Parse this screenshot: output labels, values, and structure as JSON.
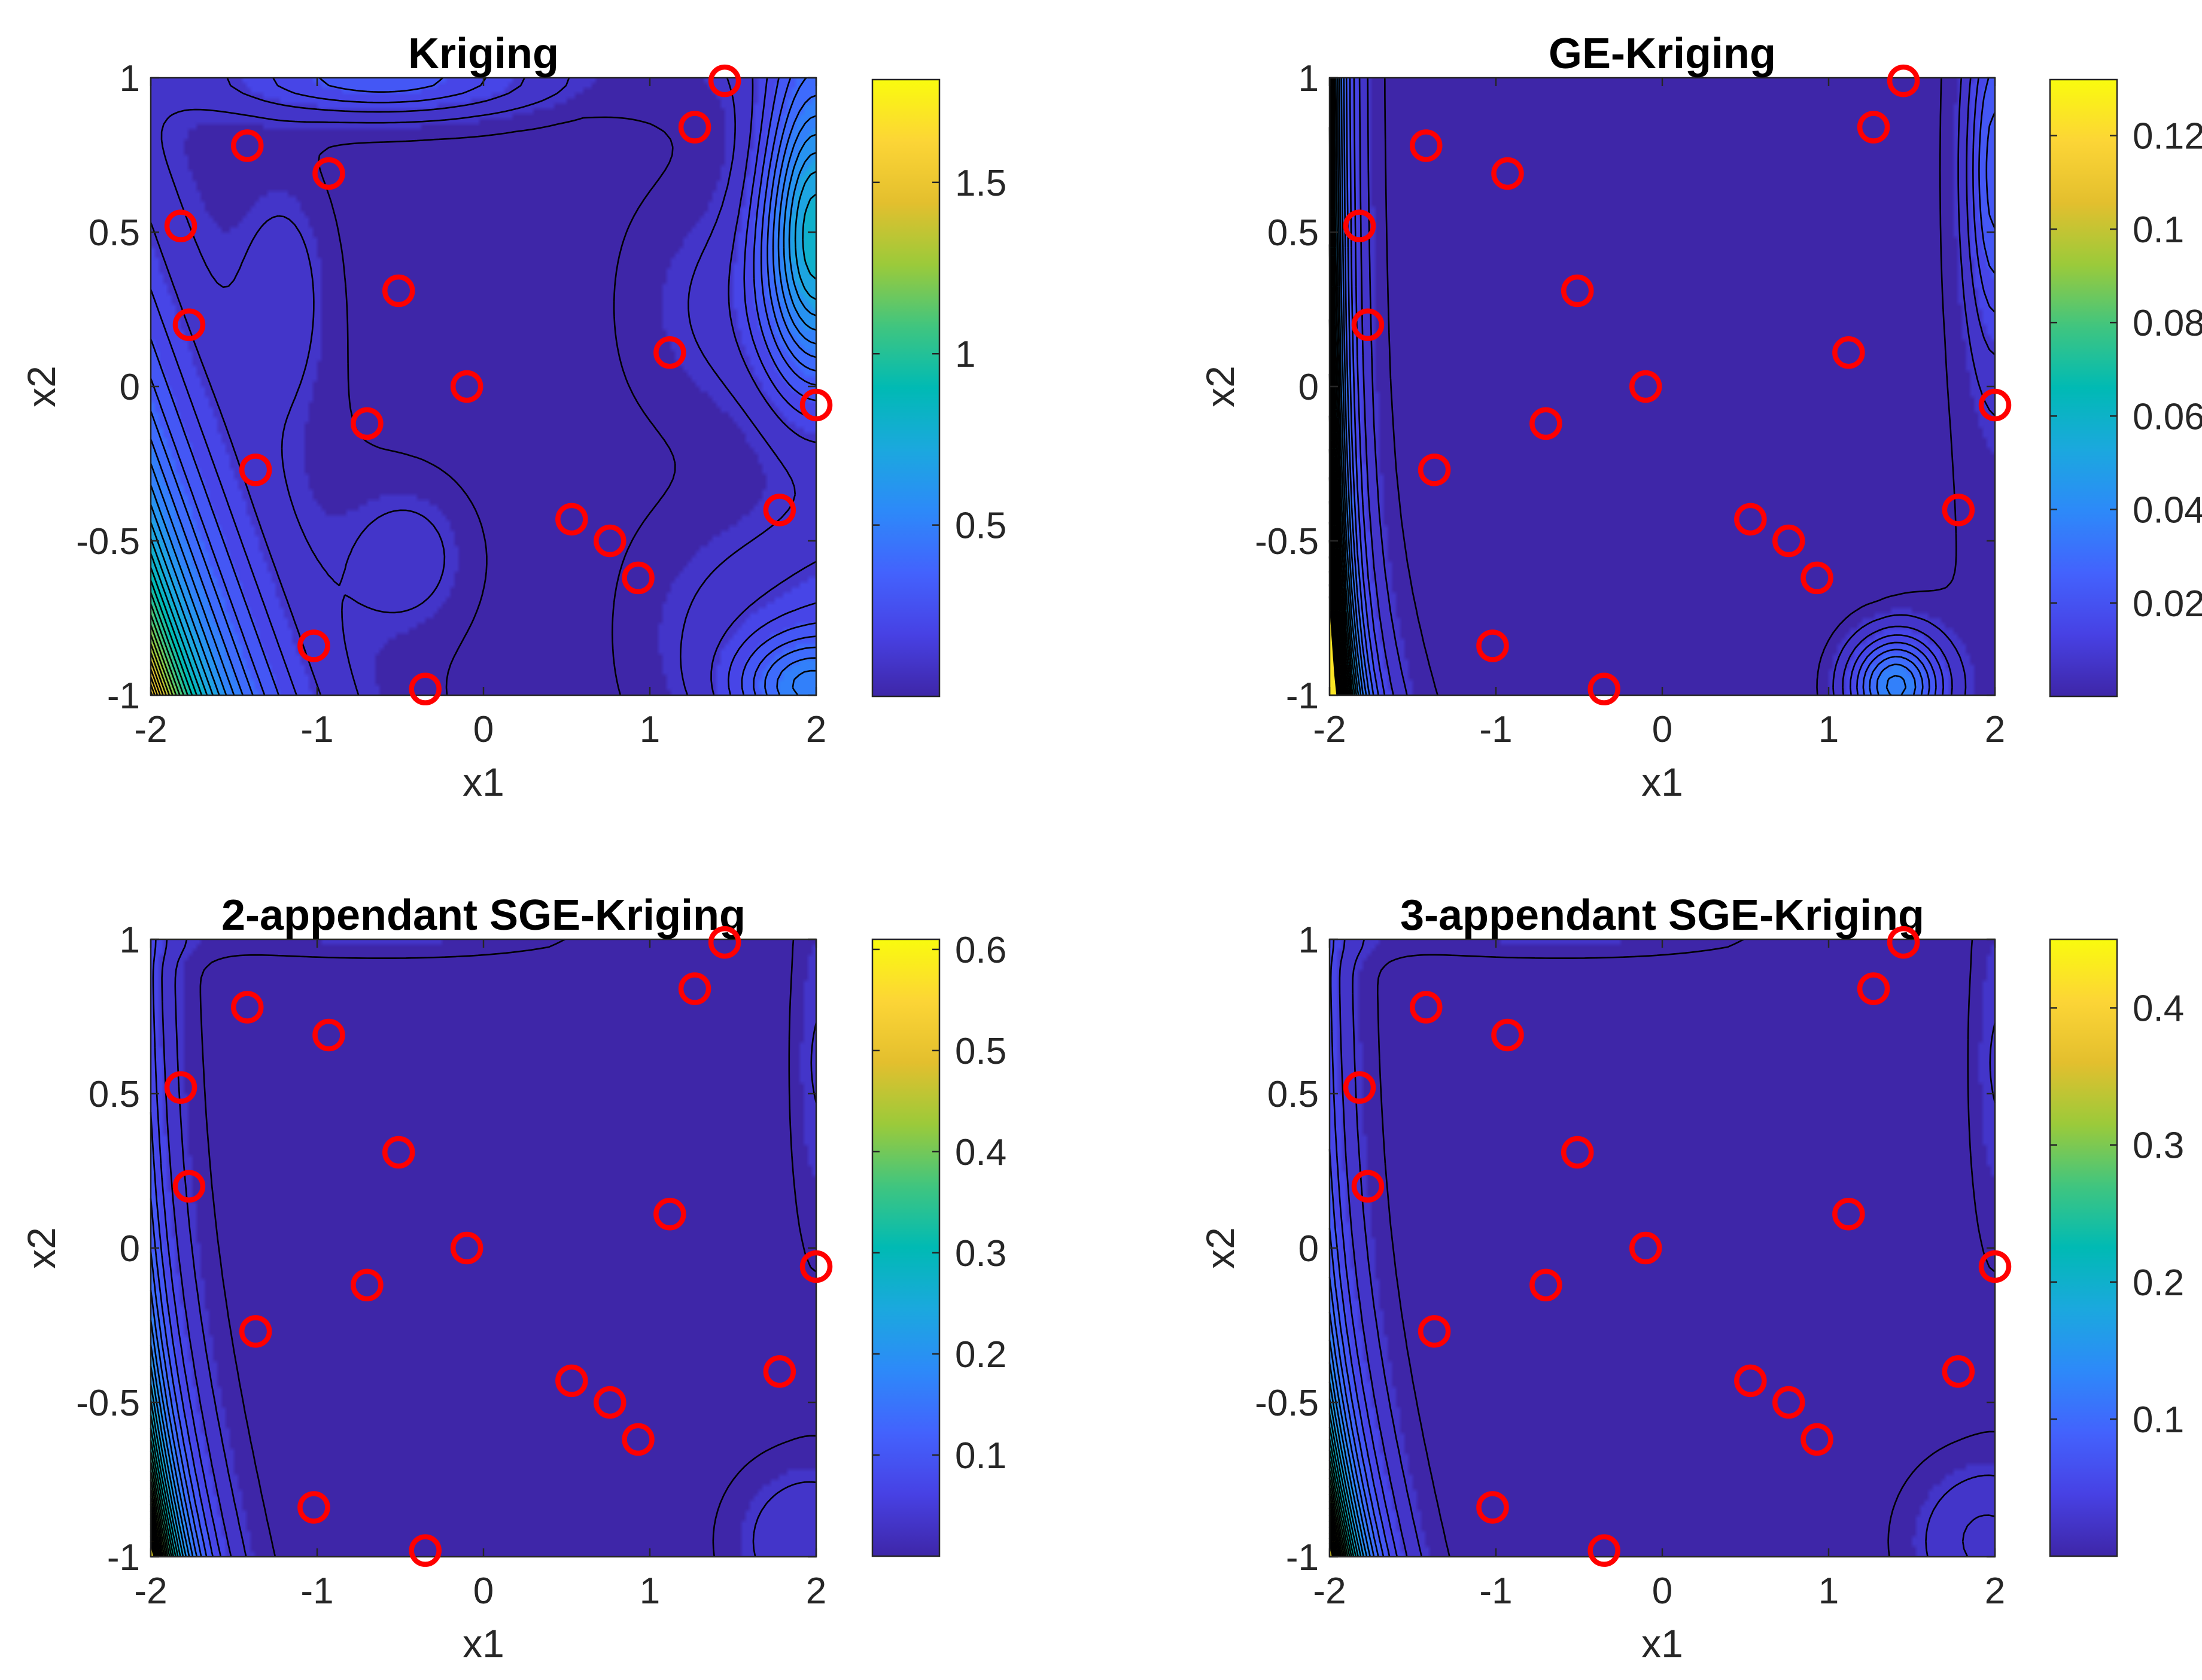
{
  "figure": {
    "colormap": "parula",
    "colormap_stops": [
      "#3e26a8",
      "#4741e4",
      "#4362fd",
      "#2d89f9",
      "#1ba8de",
      "#00bab4",
      "#40c57f",
      "#9bca3a",
      "#e3bf2e",
      "#fcd536",
      "#f9fb0e"
    ],
    "marker_color": "#ff0000",
    "background": "#ffffff"
  },
  "chart_data": [
    {
      "type": "contour",
      "title": "Kriging",
      "xlabel": "x1",
      "ylabel": "x2",
      "xlim": [
        -2,
        2
      ],
      "ylim": [
        -1,
        1
      ],
      "xticks": [
        "-2",
        "-1",
        "0",
        "1",
        "2"
      ],
      "yticks": [
        "-1",
        "-0.5",
        "0",
        "0.5",
        "1"
      ],
      "colorbar": {
        "min": 0,
        "max": 1.8,
        "ticks": [
          {
            "v": 0.5,
            "label": "0.5"
          },
          {
            "v": 1,
            "label": "1"
          },
          {
            "v": 1.5,
            "label": "1.5"
          }
        ]
      },
      "samples": {
        "x": [
          1.45,
          1.27,
          -1.42,
          -0.93,
          -1.82,
          -0.51,
          -1.77,
          1.12,
          -0.1,
          2.0,
          -0.7,
          -1.37,
          1.78,
          0.53,
          0.76,
          0.93,
          -1.02,
          -0.35
        ],
        "y": [
          0.99,
          0.84,
          0.78,
          0.69,
          0.52,
          0.31,
          0.2,
          0.11,
          0.0,
          -0.06,
          -0.12,
          -0.27,
          -0.4,
          -0.43,
          -0.5,
          -0.62,
          -0.84,
          -0.98
        ]
      }
    },
    {
      "type": "contour",
      "title": "GE-Kriging",
      "xlabel": "x1",
      "ylabel": "x2",
      "xlim": [
        -2,
        2
      ],
      "ylim": [
        -1,
        1
      ],
      "xticks": [
        "-2",
        "-1",
        "0",
        "1",
        "2"
      ],
      "yticks": [
        "-1",
        "-0.5",
        "0",
        "0.5",
        "1"
      ],
      "colorbar": {
        "min": 0,
        "max": 0.132,
        "ticks": [
          {
            "v": 0.02,
            "label": "0.02"
          },
          {
            "v": 0.04,
            "label": "0.04"
          },
          {
            "v": 0.06,
            "label": "0.06"
          },
          {
            "v": 0.08,
            "label": "0.08"
          },
          {
            "v": 0.1,
            "label": "0.1"
          },
          {
            "v": 0.12,
            "label": "0.12"
          }
        ]
      },
      "samples": {
        "x": [
          1.45,
          1.27,
          -1.42,
          -0.93,
          -1.82,
          -0.51,
          -1.77,
          1.12,
          -0.1,
          2.0,
          -0.7,
          -1.37,
          1.78,
          0.53,
          0.76,
          0.93,
          -1.02,
          -0.35
        ],
        "y": [
          0.99,
          0.84,
          0.78,
          0.69,
          0.52,
          0.31,
          0.2,
          0.11,
          0.0,
          -0.06,
          -0.12,
          -0.27,
          -0.4,
          -0.43,
          -0.5,
          -0.62,
          -0.84,
          -0.98
        ]
      }
    },
    {
      "type": "contour",
      "title": "2-appendant SGE-Kriging",
      "xlabel": "x1",
      "ylabel": "x2",
      "xlim": [
        -2,
        2
      ],
      "ylim": [
        -1,
        1
      ],
      "xticks": [
        "-2",
        "-1",
        "0",
        "1",
        "2"
      ],
      "yticks": [
        "-1",
        "-0.5",
        "0",
        "0.5",
        "1"
      ],
      "colorbar": {
        "min": 0,
        "max": 0.61,
        "ticks": [
          {
            "v": 0.1,
            "label": "0.1"
          },
          {
            "v": 0.2,
            "label": "0.2"
          },
          {
            "v": 0.3,
            "label": "0.3"
          },
          {
            "v": 0.4,
            "label": "0.4"
          },
          {
            "v": 0.5,
            "label": "0.5"
          },
          {
            "v": 0.6,
            "label": "0.6"
          }
        ]
      },
      "samples": {
        "x": [
          1.45,
          1.27,
          -1.42,
          -0.93,
          -1.82,
          -0.51,
          -1.77,
          1.12,
          -0.1,
          2.0,
          -0.7,
          -1.37,
          1.78,
          0.53,
          0.76,
          0.93,
          -1.02,
          -0.35
        ],
        "y": [
          0.99,
          0.84,
          0.78,
          0.69,
          0.52,
          0.31,
          0.2,
          0.11,
          0.0,
          -0.06,
          -0.12,
          -0.27,
          -0.4,
          -0.43,
          -0.5,
          -0.62,
          -0.84,
          -0.98
        ]
      }
    },
    {
      "type": "contour",
      "title": "3-appendant SGE-Kriging",
      "xlabel": "x1",
      "ylabel": "x2",
      "xlim": [
        -2,
        2
      ],
      "ylim": [
        -1,
        1
      ],
      "xticks": [
        "-2",
        "-1",
        "0",
        "1",
        "2"
      ],
      "yticks": [
        "-1",
        "-0.5",
        "0",
        "0.5",
        "1"
      ],
      "colorbar": {
        "min": 0,
        "max": 0.45,
        "ticks": [
          {
            "v": 0.1,
            "label": "0.1"
          },
          {
            "v": 0.2,
            "label": "0.2"
          },
          {
            "v": 0.3,
            "label": "0.3"
          },
          {
            "v": 0.4,
            "label": "0.4"
          }
        ]
      },
      "samples": {
        "x": [
          1.45,
          1.27,
          -1.42,
          -0.93,
          -1.82,
          -0.51,
          -1.77,
          1.12,
          -0.1,
          2.0,
          -0.7,
          -1.37,
          1.78,
          0.53,
          0.76,
          0.93,
          -1.02,
          -0.35
        ],
        "y": [
          0.99,
          0.84,
          0.78,
          0.69,
          0.52,
          0.31,
          0.2,
          0.11,
          0.0,
          -0.06,
          -0.12,
          -0.27,
          -0.4,
          -0.43,
          -0.5,
          -0.62,
          -0.84,
          -0.98
        ]
      }
    }
  ]
}
